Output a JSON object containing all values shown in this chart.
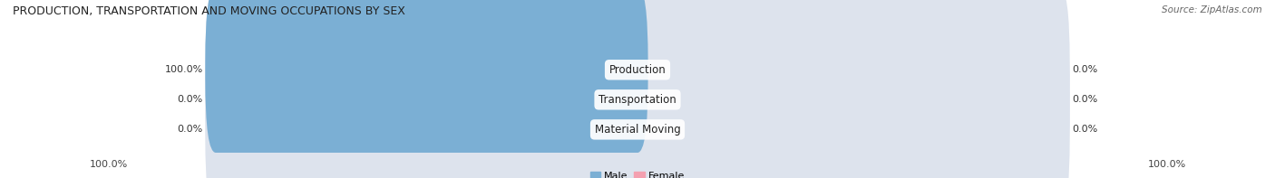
{
  "title": "PRODUCTION, TRANSPORTATION AND MOVING OCCUPATIONS BY SEX",
  "source": "Source: ZipAtlas.com",
  "categories": [
    "Production",
    "Transportation",
    "Material Moving"
  ],
  "male_values": [
    100.0,
    0.0,
    0.0
  ],
  "female_values": [
    0.0,
    0.0,
    0.0
  ],
  "male_color": "#7bafd4",
  "female_color": "#f4a0b0",
  "bar_bg_color": "#dde3ed",
  "label_left_male": [
    "100.0%",
    "0.0%",
    "0.0%"
  ],
  "label_right_female": [
    "0.0%",
    "0.0%",
    "0.0%"
  ],
  "x_left_label": "100.0%",
  "x_right_label": "100.0%",
  "title_fontsize": 9,
  "label_fontsize": 8,
  "legend_fontsize": 8,
  "bg_color": "#ffffff"
}
